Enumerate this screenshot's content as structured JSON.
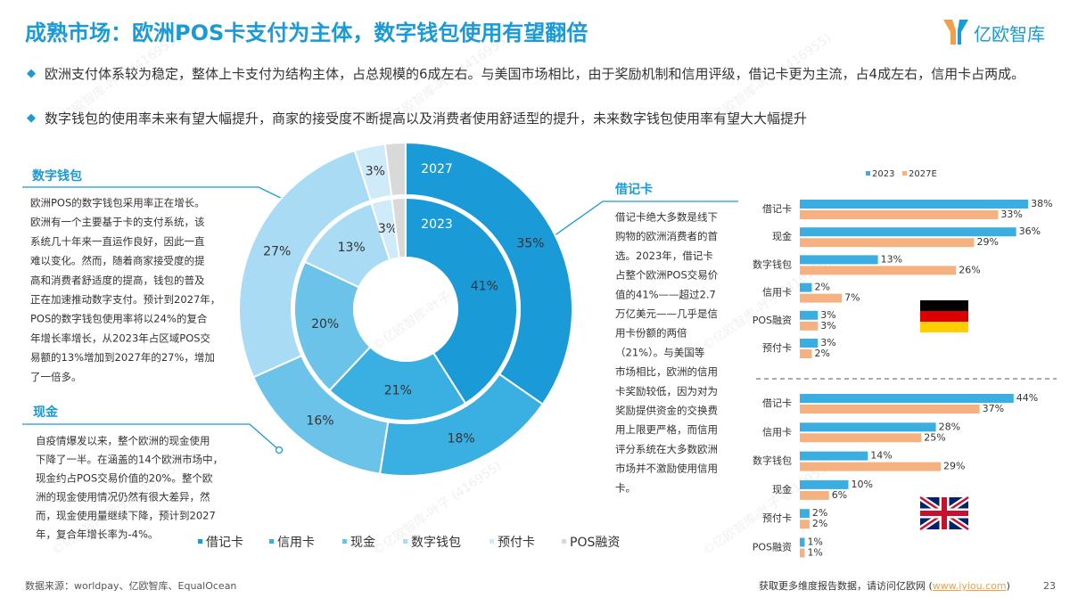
{
  "header": {
    "title": "成熟市场：欧洲POS卡支付为主体，数字钱包使用有望翻倍",
    "logo": "亿欧智库"
  },
  "bullets": [
    "欧洲支付体系较为稳定，整体上卡支付为结构主体，占总规模的6成左右。与美国市场相比，由于奖励机制和信用评级，借记卡更为主流，占4成左右，信用卡占两成。",
    "数字钱包的使用率未来有望大幅提升，商家的接受度不断提高以及消费者使用舒适型的提升，未来数字钱包使用率有望大大幅提升"
  ],
  "watermark": "©亿欧智库-叶子 (416955)",
  "panels": [
    {
      "title": "数字钱包",
      "lines": [
        "欧洲POS的数字钱包采用率正在增长。",
        "欧洲有一个主要基于卡的支付系统，该",
        "系统几十年来一直运作良好，因此一直",
        "难以变化。然而，随着商家接受度的提",
        "高和消费者舒适度的提高，钱包的普及",
        "正在加速推动数字支付。预计到2027年，",
        "POS的数字钱包使用率将以24%的复合",
        "年增长率增长，从2023年占区域POS交",
        "易额的13%增加到2027年的27%，增加",
        "了一倍多。"
      ]
    },
    {
      "title": "现金",
      "lines": [
        "自疫情爆发以来，整个欧洲的现金使用",
        "下降了一半。在涵盖的14个欧洲市场中，",
        "现金约占POS交易价值的20%。整个欧",
        "洲的现金使用情况仍然有很大差异，然",
        "而，现金使用量继续下降，预计到2027",
        "年，复合年增长率为-4%。"
      ]
    },
    {
      "title": "借记卡",
      "lines": [
        "借记卡绝大多数是线下",
        "购物的欧洲消费者的首",
        "选。2023年，借记卡",
        "占整个欧洲POS交易价",
        "值的41%——超过2.7",
        "万亿美元——几乎是信",
        "用卡份额的两倍",
        "（21%）。与美国等",
        "市场相比，欧洲的信用",
        "卡奖励较低，因为对为",
        "奖励提供资金的交换费",
        "用上限更严格，而信用",
        "评分系统在大多数欧洲",
        "市场并不激励使用信用",
        "卡。"
      ]
    }
  ],
  "chart_data": [
    {
      "type": "donut",
      "categories": [
        "借记卡",
        "信用卡",
        "现金",
        "数字钱包",
        "预付卡",
        "POS融资"
      ],
      "colors": [
        "#1a9ad6",
        "#3aafe2",
        "#6cc3ea",
        "#a9dcf4",
        "#cfeaf8",
        "#d9d9d9"
      ],
      "series": [
        {
          "name": "2027",
          "values": [
            35,
            18,
            16,
            27,
            3,
            2
          ],
          "value_labels": [
            "35%",
            "18%",
            "16%",
            "27%",
            "3%",
            null
          ]
        },
        {
          "name": "2023",
          "values": [
            41,
            21,
            20,
            13,
            3,
            2
          ],
          "value_labels": [
            "41%",
            "21%",
            "20%",
            "13%",
            "3%",
            null
          ]
        }
      ]
    },
    {
      "type": "bar",
      "orientation": "horizontal",
      "legend": "top",
      "categories": [
        "借记卡",
        "现金",
        "数字钱包",
        "信用卡",
        "POS融资",
        "预付卡"
      ],
      "series": [
        {
          "name": "2023",
          "color": "#3aaee0",
          "values": [
            38,
            36,
            13,
            2,
            3,
            3
          ],
          "value_labels": [
            "38%",
            "36%",
            "13%",
            "2%",
            "3%",
            "3%"
          ]
        },
        {
          "name": "2027E",
          "color": "#f5b17f",
          "values": [
            33,
            29,
            26,
            7,
            3,
            2
          ],
          "value_labels": [
            "33%",
            "29%",
            "26%",
            "7%",
            "3%",
            "2%"
          ]
        }
      ]
    },
    {
      "type": "bar",
      "orientation": "horizontal",
      "categories": [
        "借记卡",
        "信用卡",
        "数字钱包",
        "现金",
        "预付卡",
        "POS融资"
      ],
      "series": [
        {
          "color": "#3aaee0",
          "values": [
            44,
            28,
            14,
            10,
            2,
            1
          ],
          "value_labels": [
            "44%",
            "28%",
            "14%",
            "10%",
            "2%",
            "1%"
          ]
        },
        {
          "color": "#f5b17f",
          "values": [
            37,
            25,
            29,
            6,
            2,
            1
          ],
          "value_labels": [
            "37%",
            "25%",
            "29%",
            "6%",
            "2%",
            "1%"
          ]
        }
      ]
    }
  ],
  "footer": {
    "source": "数据来源：worldpay、亿欧智库、EqualOcean",
    "note": "获取更多维度报告数据，请访问亿欧网 (",
    "link": "www.iyiou.com",
    "close": ")",
    "page": "23"
  }
}
